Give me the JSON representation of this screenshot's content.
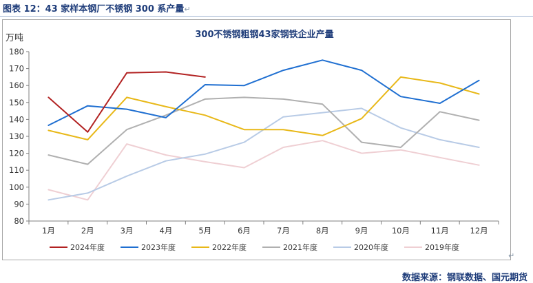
{
  "figure_caption": "图表 12：43 家样本钢厂不锈钢 300 系产量",
  "paragraph_mark": "↵",
  "source_note": "数据来源：钢联数据、国元期货",
  "chart_data": {
    "type": "line",
    "title": "300不锈钢粗钢43家钢铁企业产量",
    "ylabel": "万吨",
    "xlabel": "",
    "ylim": [
      80,
      180
    ],
    "yticks": [
      80,
      90,
      100,
      110,
      120,
      130,
      140,
      150,
      160,
      170,
      180
    ],
    "categories": [
      "1月",
      "2月",
      "3月",
      "4月",
      "5月",
      "6月",
      "7月",
      "8月",
      "9月",
      "10月",
      "11月",
      "12月"
    ],
    "grid": false,
    "legend_position": "bottom",
    "series": [
      {
        "name": "2024年度",
        "color": "#b22222",
        "values": [
          153,
          132.5,
          167.5,
          168,
          165,
          null,
          null,
          null,
          null,
          null,
          null,
          null
        ]
      },
      {
        "name": "2023年度",
        "color": "#1f6fd1",
        "values": [
          136.5,
          148,
          146,
          141,
          160.5,
          160,
          169,
          175,
          169,
          153.5,
          149.5,
          163
        ]
      },
      {
        "name": "2022年度",
        "color": "#e8b818",
        "values": [
          133.5,
          128,
          153,
          147.5,
          142.5,
          134,
          134,
          130.5,
          140.5,
          165,
          161.5,
          155
        ]
      },
      {
        "name": "2021年度",
        "color": "#b0b0b0",
        "values": [
          119,
          113.5,
          134,
          142.5,
          152,
          153,
          152,
          149,
          126.5,
          123.5,
          144.5,
          139.5
        ]
      },
      {
        "name": "2020年度",
        "color": "#b8cbe6",
        "values": [
          92.5,
          96.5,
          106.5,
          115.5,
          119.5,
          126.5,
          141.5,
          144,
          146.5,
          135,
          128,
          123.5
        ]
      },
      {
        "name": "2019年度",
        "color": "#efcfd3",
        "values": [
          98.5,
          92.5,
          125.5,
          119,
          115,
          111.5,
          123.5,
          127.5,
          120,
          122,
          117.5,
          113
        ]
      }
    ]
  }
}
